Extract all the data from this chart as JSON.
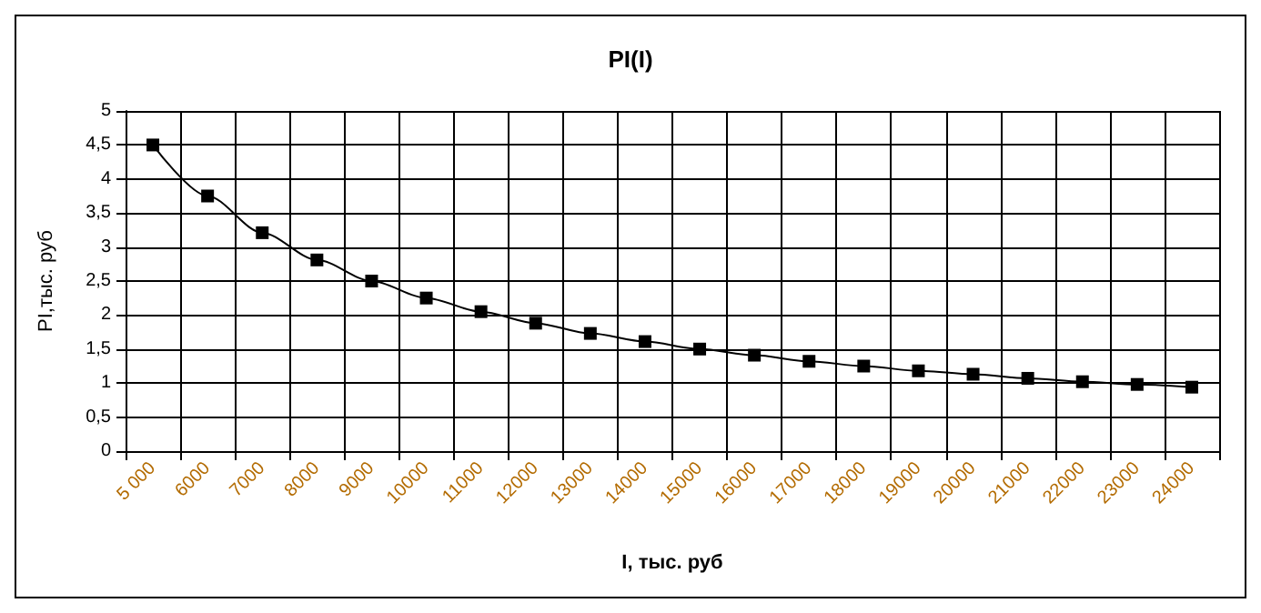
{
  "chart_data": {
    "type": "line",
    "title": "PI(I)",
    "xlabel": "I, тыс. руб",
    "ylabel": "PI,тыс. руб",
    "categories": [
      "5 000",
      "6000",
      "7000",
      "8000",
      "9000",
      "10000",
      "11000",
      "12000",
      "13000",
      "14000",
      "15000",
      "16000",
      "17000",
      "18000",
      "19000",
      "20000",
      "21000",
      "22000",
      "23000",
      "24000"
    ],
    "series": [
      {
        "color": "#000000",
        "values": [
          4.5,
          3.75,
          3.21,
          2.81,
          2.5,
          2.25,
          2.05,
          1.88,
          1.73,
          1.61,
          1.5,
          1.41,
          1.32,
          1.25,
          1.18,
          1.13,
          1.07,
          1.02,
          0.98,
          0.94
        ]
      }
    ],
    "ylim": [
      0,
      5
    ],
    "yticks": [
      0,
      {
        "value": 0.5,
        "label": "0,5"
      },
      1,
      {
        "value": 1.5,
        "label": "1,5"
      },
      2,
      {
        "value": 2.5,
        "label": "2,5"
      },
      3,
      {
        "value": 3.5,
        "label": "3,5"
      },
      4,
      {
        "value": 4.5,
        "label": "4,5"
      },
      5
    ],
    "grid": true,
    "marker": "square",
    "line_style": "solid"
  }
}
